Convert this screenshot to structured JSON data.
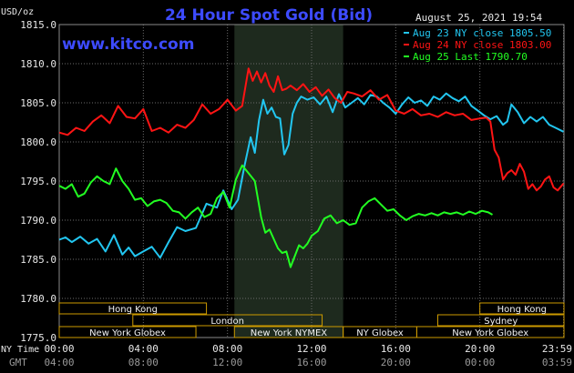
{
  "title": "24 Hour Spot Gold (Bid)",
  "site": "www.kitco.com",
  "timestamp": "August 25, 2021 19:54",
  "unit_label": "USD/oz",
  "axis_label_ny": "NY Time",
  "axis_label_gmt": "GMT",
  "colors": {
    "grid": "#6b6b6b",
    "gold": "#cc9a00",
    "band": "#1e2a1e",
    "aug23": "#22c6f0",
    "aug24": "#ff1414",
    "aug25": "#22ff22"
  },
  "chart_data": {
    "type": "line",
    "ylim": [
      1775,
      1815
    ],
    "yticks": [
      "1775.0",
      "1780.0",
      "1785.0",
      "1790.0",
      "1795.0",
      "1800.0",
      "1805.0",
      "1810.0",
      "1815.0"
    ],
    "xlim": [
      0,
      24
    ],
    "xticks_ny": [
      "00:00",
      "04:00",
      "08:00",
      "12:00",
      "16:00",
      "20:00",
      "23:59"
    ],
    "xticks_gmt": [
      "04:00",
      "08:00",
      "12:00",
      "16:00",
      "20:00",
      "00:00",
      "03:59"
    ],
    "nymex_band_hours": [
      8.33,
      13.5
    ],
    "series": [
      {
        "name": "Aug 23 NY close 1805.50",
        "color_key": "aug23",
        "x": [
          0,
          0.3,
          0.6,
          1.0,
          1.4,
          1.8,
          2.2,
          2.6,
          3.0,
          3.3,
          3.6,
          4.0,
          4.4,
          4.8,
          5.2,
          5.6,
          6.0,
          6.5,
          7.0,
          7.5,
          7.8,
          8.2,
          8.5,
          8.8,
          9.1,
          9.3,
          9.5,
          9.7,
          9.9,
          10.1,
          10.3,
          10.5,
          10.7,
          10.9,
          11.1,
          11.3,
          11.5,
          11.8,
          12.1,
          12.4,
          12.7,
          13.0,
          13.3,
          13.6,
          13.9,
          14.2,
          14.5,
          14.8,
          15.1,
          15.4,
          15.7,
          16.0,
          16.3,
          16.6,
          16.9,
          17.2,
          17.5,
          17.8,
          18.1,
          18.4,
          18.7,
          19.0,
          19.3,
          19.6,
          19.9,
          20.2,
          20.5,
          20.8,
          21.1,
          21.3,
          21.5,
          21.8,
          22.1,
          22.4,
          22.7,
          23.0,
          23.3,
          23.6,
          23.98
        ],
        "y": [
          1787.5,
          1787.8,
          1787.2,
          1787.9,
          1787.0,
          1787.6,
          1786.0,
          1788.1,
          1785.6,
          1786.5,
          1785.4,
          1786.0,
          1786.6,
          1785.2,
          1787.2,
          1789.1,
          1788.6,
          1789.0,
          1792.1,
          1791.6,
          1793.8,
          1791.4,
          1792.6,
          1796.8,
          1800.6,
          1798.6,
          1802.8,
          1805.4,
          1803.6,
          1804.4,
          1803.2,
          1803.0,
          1798.4,
          1799.6,
          1803.6,
          1805.0,
          1805.8,
          1805.4,
          1805.7,
          1804.8,
          1805.8,
          1803.8,
          1806.1,
          1804.4,
          1805.0,
          1805.6,
          1804.8,
          1806.0,
          1805.8,
          1805.0,
          1804.4,
          1803.6,
          1804.8,
          1805.7,
          1805.0,
          1805.3,
          1804.6,
          1805.8,
          1805.4,
          1806.2,
          1805.6,
          1805.2,
          1805.8,
          1804.6,
          1804.0,
          1803.4,
          1802.9,
          1803.3,
          1802.2,
          1802.6,
          1804.8,
          1803.8,
          1802.4,
          1803.2,
          1802.6,
          1803.2,
          1802.2,
          1801.8,
          1801.3
        ]
      },
      {
        "name": "Aug 24 NY close 1803.00",
        "color_key": "aug24",
        "x": [
          0,
          0.4,
          0.8,
          1.2,
          1.6,
          2.0,
          2.4,
          2.8,
          3.2,
          3.6,
          4.0,
          4.4,
          4.8,
          5.2,
          5.6,
          6.0,
          6.4,
          6.8,
          7.2,
          7.6,
          8.0,
          8.4,
          8.7,
          9.0,
          9.2,
          9.4,
          9.6,
          9.8,
          10.0,
          10.2,
          10.4,
          10.6,
          10.8,
          11.0,
          11.3,
          11.6,
          11.9,
          12.2,
          12.5,
          12.8,
          13.1,
          13.4,
          13.7,
          14.0,
          14.4,
          14.8,
          15.2,
          15.6,
          16.0,
          16.4,
          16.8,
          17.2,
          17.6,
          18.0,
          18.4,
          18.8,
          19.2,
          19.6,
          20.0,
          20.3,
          20.5,
          20.7,
          20.9,
          21.1,
          21.3,
          21.5,
          21.7,
          21.9,
          22.1,
          22.3,
          22.5,
          22.7,
          22.9,
          23.1,
          23.3,
          23.5,
          23.7,
          23.98
        ],
        "y": [
          1801.2,
          1800.9,
          1801.8,
          1801.4,
          1802.6,
          1803.4,
          1802.4,
          1804.6,
          1803.2,
          1803.0,
          1804.2,
          1801.4,
          1801.8,
          1801.2,
          1802.2,
          1801.8,
          1802.8,
          1804.8,
          1803.6,
          1804.2,
          1805.4,
          1804.0,
          1804.6,
          1809.4,
          1807.8,
          1809.0,
          1807.6,
          1808.8,
          1807.2,
          1806.4,
          1808.4,
          1806.6,
          1806.8,
          1807.2,
          1806.6,
          1807.4,
          1806.4,
          1807.0,
          1805.9,
          1806.7,
          1805.6,
          1805.0,
          1806.4,
          1806.2,
          1805.8,
          1806.6,
          1805.4,
          1806.0,
          1804.0,
          1803.6,
          1804.2,
          1803.4,
          1803.6,
          1803.2,
          1803.8,
          1803.4,
          1803.6,
          1802.8,
          1803.0,
          1803.1,
          1802.6,
          1799.0,
          1798.0,
          1795.2,
          1796.0,
          1796.4,
          1795.8,
          1797.2,
          1796.2,
          1794.0,
          1794.6,
          1793.8,
          1794.3,
          1795.2,
          1795.6,
          1794.2,
          1793.8,
          1794.7
        ]
      },
      {
        "name": "Aug 25 Last 1790.70",
        "color_key": "aug25",
        "x": [
          0,
          0.3,
          0.6,
          0.9,
          1.2,
          1.5,
          1.8,
          2.1,
          2.4,
          2.7,
          3.0,
          3.3,
          3.6,
          3.9,
          4.2,
          4.5,
          4.8,
          5.1,
          5.4,
          5.7,
          6.0,
          6.3,
          6.6,
          6.9,
          7.2,
          7.5,
          7.8,
          8.1,
          8.4,
          8.7,
          9.0,
          9.3,
          9.6,
          9.8,
          10.0,
          10.2,
          10.4,
          10.6,
          10.8,
          11.0,
          11.2,
          11.4,
          11.6,
          11.8,
          12.0,
          12.3,
          12.6,
          12.9,
          13.2,
          13.5,
          13.8,
          14.1,
          14.4,
          14.7,
          15.0,
          15.3,
          15.6,
          15.9,
          16.2,
          16.5,
          16.8,
          17.1,
          17.4,
          17.7,
          18.0,
          18.3,
          18.6,
          18.9,
          19.2,
          19.5,
          19.8,
          20.1,
          20.4,
          20.6
        ],
        "y": [
          1794.4,
          1794.0,
          1794.6,
          1793.0,
          1793.4,
          1794.8,
          1795.6,
          1795.0,
          1794.6,
          1796.6,
          1795.0,
          1794.0,
          1792.6,
          1792.8,
          1791.8,
          1792.4,
          1792.6,
          1792.2,
          1791.2,
          1791.0,
          1790.2,
          1791.0,
          1791.6,
          1790.4,
          1790.8,
          1792.8,
          1793.6,
          1791.6,
          1795.2,
          1797.0,
          1796.0,
          1795.0,
          1790.4,
          1788.4,
          1788.8,
          1787.6,
          1786.4,
          1785.8,
          1786.0,
          1784.0,
          1785.4,
          1786.8,
          1786.4,
          1787.0,
          1788.0,
          1788.6,
          1790.2,
          1790.6,
          1789.6,
          1790.0,
          1789.4,
          1789.6,
          1791.6,
          1792.4,
          1792.8,
          1792.0,
          1791.2,
          1791.4,
          1790.6,
          1790.0,
          1790.5,
          1790.8,
          1790.6,
          1790.9,
          1790.6,
          1791.0,
          1790.8,
          1791.0,
          1790.7,
          1791.1,
          1790.8,
          1791.2,
          1791.0,
          1790.7
        ]
      }
    ],
    "sessions": [
      {
        "label": "Hong Kong",
        "start": 0,
        "end": 7,
        "row": 0
      },
      {
        "label": "London",
        "start": 3.5,
        "end": 12.5,
        "row": 1
      },
      {
        "label": "New York Globex",
        "start": 0,
        "end": 6.5,
        "row": 2
      },
      {
        "label": "New York NYMEX",
        "start": 8.33,
        "end": 13.5,
        "row": 2
      },
      {
        "label": "NY Globex",
        "start": 13.5,
        "end": 17.0,
        "row": 2
      },
      {
        "label": "Hong Kong",
        "start": 20.0,
        "end": 24,
        "row": 0
      },
      {
        "label": "Sydney",
        "start": 18.0,
        "end": 24,
        "row": 1
      },
      {
        "label": "New York Globex",
        "start": 17.0,
        "end": 24,
        "row": 2
      }
    ]
  }
}
